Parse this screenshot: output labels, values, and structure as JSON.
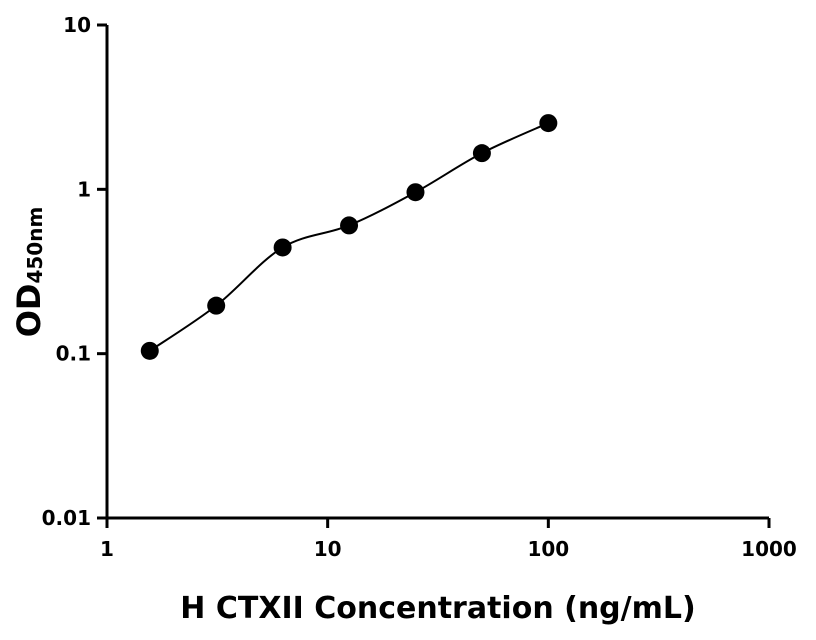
{
  "chart_data": {
    "type": "scatter",
    "x_label": "H CTXII Concentration (ng/mL)",
    "y_label": "OD",
    "y_label_sub": "450nm",
    "x": [
      1.5625,
      3.125,
      6.25,
      12.5,
      25,
      50,
      100
    ],
    "values": [
      0.104,
      0.196,
      0.443,
      0.603,
      0.96,
      1.66,
      2.53
    ],
    "color": "#000000",
    "xlim": [
      1,
      1000
    ],
    "xticks": [
      1,
      10,
      100,
      1000
    ],
    "xscale": "log",
    "ylim": [
      0.01,
      10
    ],
    "yticks": [
      0.01,
      0.1,
      1,
      10
    ],
    "yscale": "log",
    "fit_curve": true
  }
}
